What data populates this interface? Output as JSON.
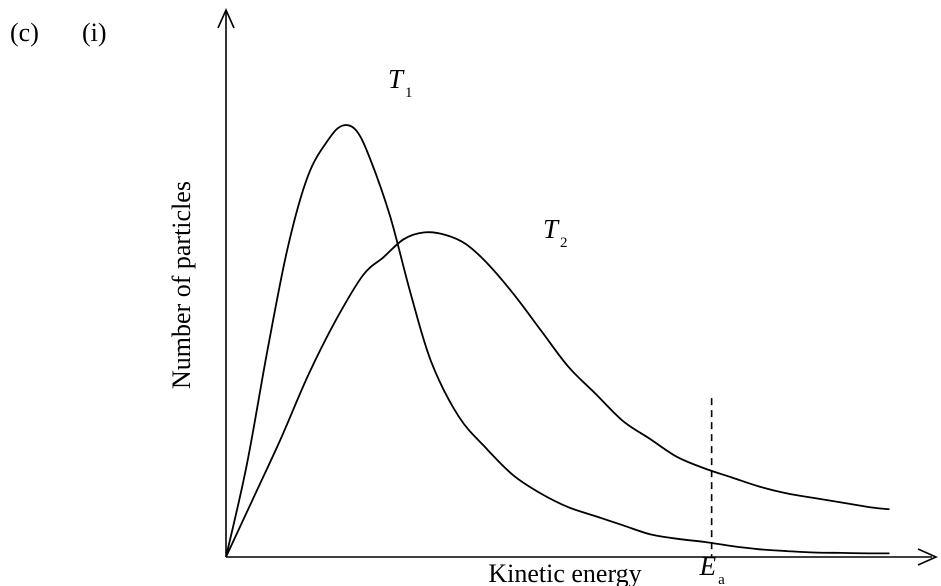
{
  "question": {
    "part": "(c)",
    "subpart": "(i)"
  },
  "chart_data": {
    "type": "line",
    "title": "",
    "xlabel": "Kinetic energy",
    "ylabel": "Number of particles",
    "xticks": [],
    "yticks": [],
    "xlim": [
      0,
      100
    ],
    "ylim": [
      0,
      100
    ],
    "grid": false,
    "legend": "none",
    "series": [
      {
        "name": "T1",
        "subscript": "1",
        "color": "#000000",
        "points": [
          [
            0,
            0
          ],
          [
            3,
            20
          ],
          [
            6,
            45
          ],
          [
            9,
            68
          ],
          [
            12,
            84
          ],
          [
            15,
            92
          ],
          [
            17,
            95
          ],
          [
            19,
            94
          ],
          [
            21,
            88
          ],
          [
            24,
            75
          ],
          [
            27,
            58
          ],
          [
            30,
            43
          ],
          [
            34,
            31
          ],
          [
            38,
            24
          ],
          [
            42,
            18
          ],
          [
            46,
            14
          ],
          [
            50,
            11
          ],
          [
            54,
            9
          ],
          [
            58,
            7
          ],
          [
            62,
            5
          ],
          [
            66,
            4
          ],
          [
            70,
            3.3
          ],
          [
            74,
            2.4
          ],
          [
            78,
            1.7
          ],
          [
            82,
            1.3
          ],
          [
            86,
            1.0
          ],
          [
            90,
            0.9
          ],
          [
            94,
            0.8
          ],
          [
            97,
            0.8
          ]
        ]
      },
      {
        "name": "T2",
        "subscript": "2",
        "color": "#000000",
        "points": [
          [
            0,
            0
          ],
          [
            4,
            13
          ],
          [
            8,
            26
          ],
          [
            12,
            40
          ],
          [
            16,
            52
          ],
          [
            20,
            62
          ],
          [
            23,
            66
          ],
          [
            26,
            70
          ],
          [
            29,
            71.5
          ],
          [
            32,
            71
          ],
          [
            35,
            69
          ],
          [
            38,
            65
          ],
          [
            42,
            58
          ],
          [
            46,
            50
          ],
          [
            50,
            42
          ],
          [
            54,
            36
          ],
          [
            58,
            30
          ],
          [
            62,
            26
          ],
          [
            66,
            22
          ],
          [
            70,
            19.5
          ],
          [
            74,
            17.5
          ],
          [
            78,
            15.5
          ],
          [
            82,
            14
          ],
          [
            86,
            13
          ],
          [
            90,
            12
          ],
          [
            94,
            11
          ],
          [
            97,
            10.5
          ]
        ]
      }
    ],
    "annotations": [
      {
        "type": "vline",
        "x": 71,
        "y_top": 35,
        "style": "dashed",
        "label": "E",
        "subscript": "a"
      }
    ]
  }
}
